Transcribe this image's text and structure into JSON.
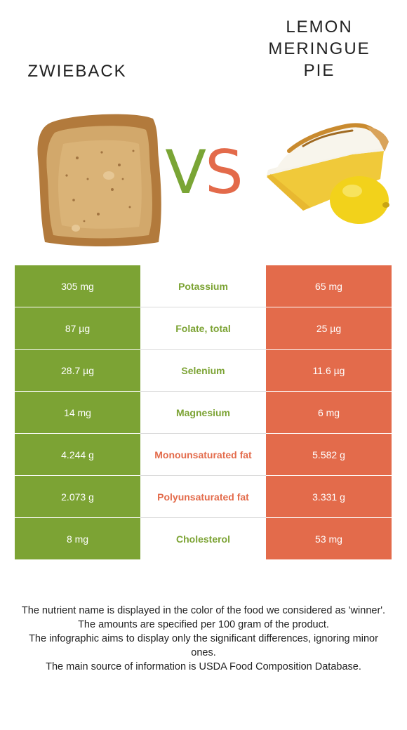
{
  "left_food": {
    "name": "ZWIEBACK",
    "color": "#7ca334"
  },
  "right_food": {
    "name": "LEMON MERINGUE PIE",
    "color": "#e36b4b"
  },
  "vs": {
    "v": "V",
    "s": "S"
  },
  "rows": [
    {
      "left": "305 mg",
      "nutrient": "Potassium",
      "right": "65 mg",
      "winner": "left"
    },
    {
      "left": "87 µg",
      "nutrient": "Folate, total",
      "right": "25 µg",
      "winner": "left"
    },
    {
      "left": "28.7 µg",
      "nutrient": "Selenium",
      "right": "11.6 µg",
      "winner": "left"
    },
    {
      "left": "14 mg",
      "nutrient": "Magnesium",
      "right": "6 mg",
      "winner": "left"
    },
    {
      "left": "4.244 g",
      "nutrient": "Monounsaturated fat",
      "right": "5.582 g",
      "winner": "right"
    },
    {
      "left": "2.073 g",
      "nutrient": "Polyunsaturated fat",
      "right": "3.331 g",
      "winner": "right"
    },
    {
      "left": "8 mg",
      "nutrient": "Cholesterol",
      "right": "53 mg",
      "winner": "left"
    }
  ],
  "footer": [
    "The nutrient name is displayed in the color of the food we considered as 'winner'.",
    "The amounts are specified per 100 gram of the product.",
    "The infographic aims to display only the significant differences, ignoring minor ones.",
    "The main source of information is USDA Food Composition Database."
  ]
}
